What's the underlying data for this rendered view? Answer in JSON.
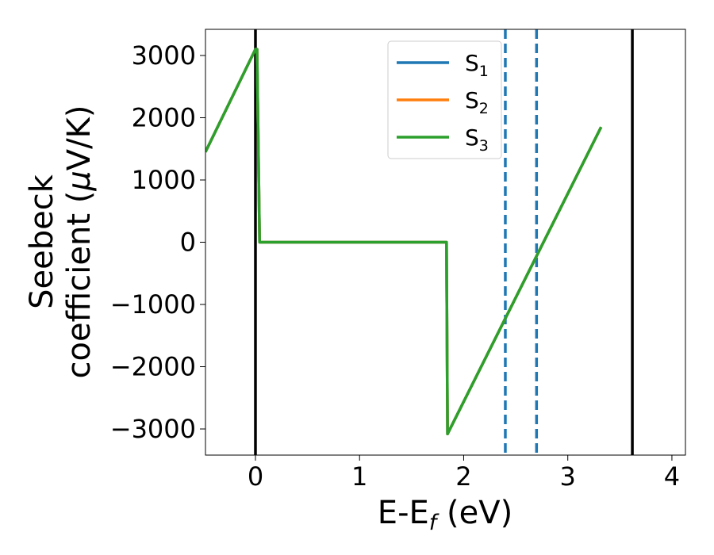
{
  "chart_data": {
    "type": "line",
    "xlabel_main": "E-E",
    "xlabel_sub": "f",
    "xlabel_tail": " (eV)",
    "ylabel_line1": "Seebeck",
    "ylabel_line2_a": "coefficient  (",
    "ylabel_line2_mu": "μ",
    "ylabel_line2_b": "V/K)",
    "xlim": [
      -0.48,
      4.13
    ],
    "ylim": [
      -3420,
      3420
    ],
    "xticks": [
      0,
      1,
      2,
      3,
      4
    ],
    "xtick_labels": [
      "0",
      "1",
      "2",
      "3",
      "4"
    ],
    "yticks": [
      3000,
      2000,
      1000,
      0,
      -1000,
      -2000,
      -3000
    ],
    "ytick_labels": [
      "3000",
      "2000",
      "1000",
      "0",
      "−1000",
      "−2000",
      "−3000"
    ],
    "grid": false,
    "legend_position": "top-center",
    "series": [
      {
        "name": "S",
        "subscript": "1",
        "color": "#1f77b4",
        "x": [
          -0.48,
          0.0,
          0.015,
          0.04,
          1.83,
          1.835,
          1.845,
          3.32
        ],
        "y": [
          1450,
          3100,
          3100,
          0,
          0,
          0,
          -3080,
          1850
        ]
      },
      {
        "name": "S",
        "subscript": "2",
        "color": "#ff7f0e",
        "x": [
          -0.48,
          0.0,
          0.015,
          0.04,
          1.83,
          1.835,
          1.845,
          3.32
        ],
        "y": [
          1450,
          3100,
          3100,
          0,
          0,
          0,
          -3080,
          1850
        ]
      },
      {
        "name": "S",
        "subscript": "3",
        "color": "#2ca02c",
        "x": [
          -0.48,
          0.0,
          0.015,
          0.04,
          1.83,
          1.835,
          1.845,
          3.32
        ],
        "y": [
          1450,
          3100,
          3100,
          0,
          0,
          0,
          -3080,
          1850
        ]
      }
    ],
    "vlines_solid": [
      0.0,
      3.62
    ],
    "vlines_dashed": [
      2.4,
      2.7
    ],
    "vline_solid_color": "#000000",
    "vline_dashed_color": "#1f77b4"
  }
}
